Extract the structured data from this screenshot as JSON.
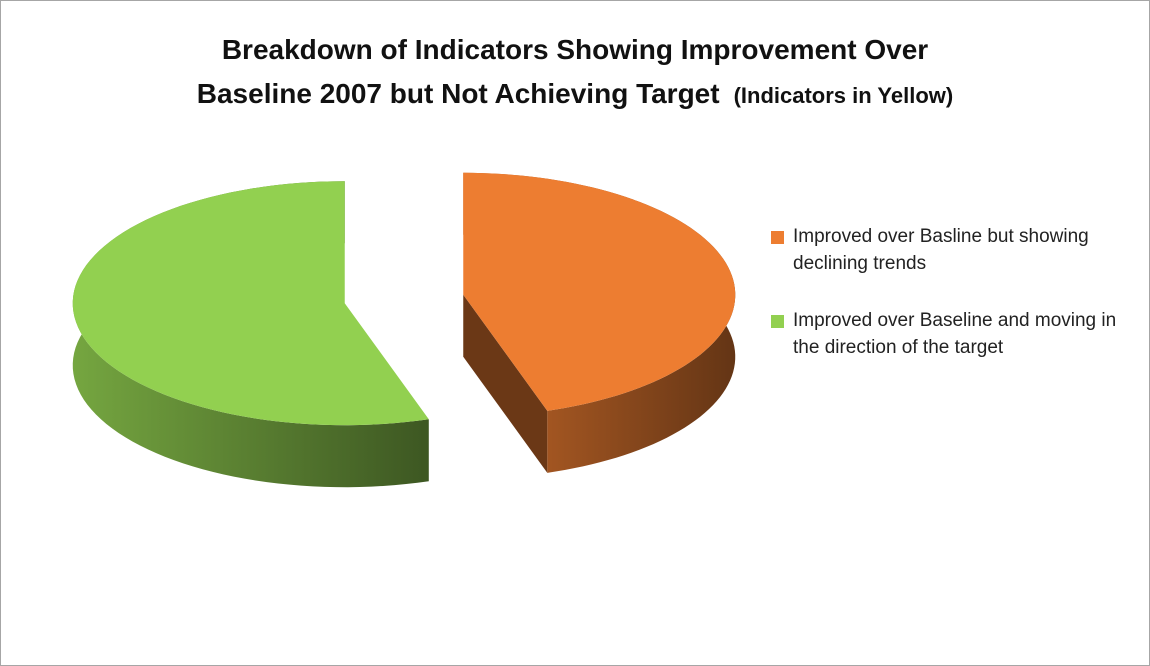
{
  "chart_data": {
    "type": "pie",
    "title": [
      "Breakdown of Indicators Showing Improvement Over",
      "Baseline 2007 but Not Achieving Target"
    ],
    "title_note": "(Indicators in Yellow)",
    "categories": [
      "Improved over Basline but showing declining trends",
      "Improved over Baseline and moving in the direction of the target"
    ],
    "values": [
      45,
      55
    ],
    "colors": [
      "#ED7D31",
      "#92D050"
    ],
    "legend": "right"
  }
}
